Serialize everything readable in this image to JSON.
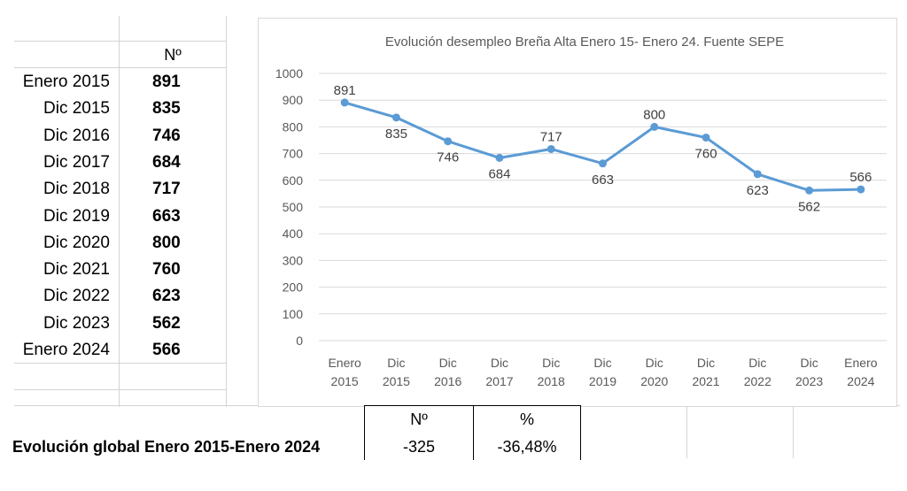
{
  "table": {
    "header": "Nº",
    "rows": [
      {
        "label": "Enero 2015",
        "value": "891"
      },
      {
        "label": "Dic 2015",
        "value": "835"
      },
      {
        "label": "Dic 2016",
        "value": "746"
      },
      {
        "label": "Dic 2017",
        "value": "684"
      },
      {
        "label": "Dic 2018",
        "value": "717"
      },
      {
        "label": "Dic 2019",
        "value": "663"
      },
      {
        "label": "Dic 2020",
        "value": "800"
      },
      {
        "label": "Dic 2021",
        "value": "760"
      },
      {
        "label": "Dic 2022",
        "value": "623"
      },
      {
        "label": "Dic 2023",
        "value": "562"
      },
      {
        "label": "Enero 2024",
        "value": "566"
      }
    ]
  },
  "summary": {
    "label": "Evolución global Enero 2015-Enero 2024",
    "col_n_header": "Nº",
    "col_pct_header": "%",
    "n_value": "-325",
    "pct_value": "-36,48%"
  },
  "chart_data": {
    "type": "line",
    "title": "Evolución desempleo Breña Alta Enero 15- Enero 24. Fuente SEPE",
    "categories": [
      [
        "Enero",
        "2015"
      ],
      [
        "Dic",
        "2015"
      ],
      [
        "Dic",
        "2016"
      ],
      [
        "Dic",
        "2017"
      ],
      [
        "Dic",
        "2018"
      ],
      [
        "Dic",
        "2019"
      ],
      [
        "Dic",
        "2020"
      ],
      [
        "Dic",
        "2021"
      ],
      [
        "Dic",
        "2022"
      ],
      [
        "Dic",
        "2023"
      ],
      [
        "Enero",
        "2024"
      ]
    ],
    "values": [
      891,
      835,
      746,
      684,
      717,
      663,
      800,
      760,
      623,
      562,
      566
    ],
    "label_position": [
      "above",
      "below",
      "below",
      "below",
      "above",
      "below",
      "above",
      "below",
      "below",
      "below",
      "above"
    ],
    "ylim": [
      0,
      1000
    ],
    "yticks": [
      0,
      100,
      200,
      300,
      400,
      500,
      600,
      700,
      800,
      900,
      1000
    ],
    "xlabel": "",
    "ylabel": "",
    "grid": true,
    "legend": "none",
    "line_color": "#5b9bd5",
    "grid_color": "#d9d9d9"
  }
}
